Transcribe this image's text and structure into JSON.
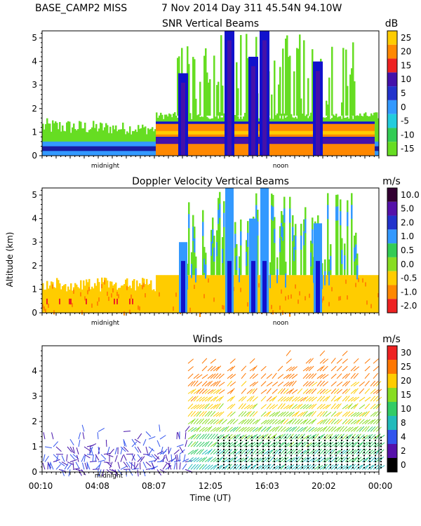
{
  "header": {
    "station": "BASE_CAMP2 MISS",
    "date": "7 Nov 2014 Day 311 45.54N  94.10W"
  },
  "colors": {
    "green": "#66dd22",
    "blue": "#3399ff",
    "navy": "#1a1aa0",
    "darkblue": "#1111cc",
    "purple": "#4411aa",
    "red": "#ee2222",
    "orange": "#ff8800",
    "yellow": "#ffcc00",
    "black": "#000000"
  },
  "chart_data": [
    {
      "type": "heatmap",
      "title": "SNR Vertical Beams",
      "ylabel": "",
      "xlabel": "",
      "ylim": [
        0,
        5.3
      ],
      "y_ticks": [
        "0",
        "1",
        "2",
        "3",
        "4",
        "5"
      ],
      "x_day_markers": [
        "midnight",
        "noon"
      ],
      "colorbar": {
        "unit": "dB",
        "labels": [
          "25",
          "20",
          "15",
          "10",
          "5",
          "0",
          "-5",
          "-10",
          "-15"
        ],
        "colors": [
          "#ffcc00",
          "#ff8800",
          "#ee2222",
          "#4411aa",
          "#2233cc",
          "#3399ff",
          "#22ccdd",
          "#33cc55",
          "#66dd22"
        ]
      }
    },
    {
      "type": "heatmap",
      "title": "Doppler Velocity Vertical Beams",
      "ylabel": "Altitude (km)",
      "xlabel": "",
      "ylim": [
        0,
        5.3
      ],
      "y_ticks": [
        "0",
        "1",
        "2",
        "3",
        "4",
        "5"
      ],
      "x_day_markers": [
        "midnight",
        "noon"
      ],
      "colorbar": {
        "unit": "m/s",
        "labels": [
          "10.0",
          "5.0",
          "2.0",
          "1.0",
          "0.5",
          "0.0",
          "-0.5",
          "-1.0",
          "-2.0"
        ],
        "colors": [
          "#330033",
          "#5511aa",
          "#2233cc",
          "#3399ff",
          "#33cc55",
          "#88dd22",
          "#ffcc00",
          "#ff8800",
          "#ee2222"
        ]
      }
    },
    {
      "type": "scatter",
      "title": "Winds",
      "ylabel": "",
      "xlabel": "Time (UT)",
      "ylim": [
        0,
        5
      ],
      "y_ticks": [
        "0",
        "1",
        "2",
        "3",
        "4"
      ],
      "x_ticks": [
        "00:10",
        "04:08",
        "08:07",
        "12:05",
        "16:03",
        "20:02",
        "00:00"
      ],
      "x_day_markers": [
        "midnight"
      ],
      "colorbar": {
        "unit": "m/s",
        "labels": [
          "30",
          "25",
          "20",
          "15",
          "10",
          "8",
          "4",
          "2",
          "0"
        ],
        "colors": [
          "#ee2222",
          "#ff7700",
          "#ffcc00",
          "#88dd22",
          "#33cc66",
          "#22bbbb",
          "#3355ee",
          "#5511aa",
          "#000000"
        ]
      }
    }
  ]
}
